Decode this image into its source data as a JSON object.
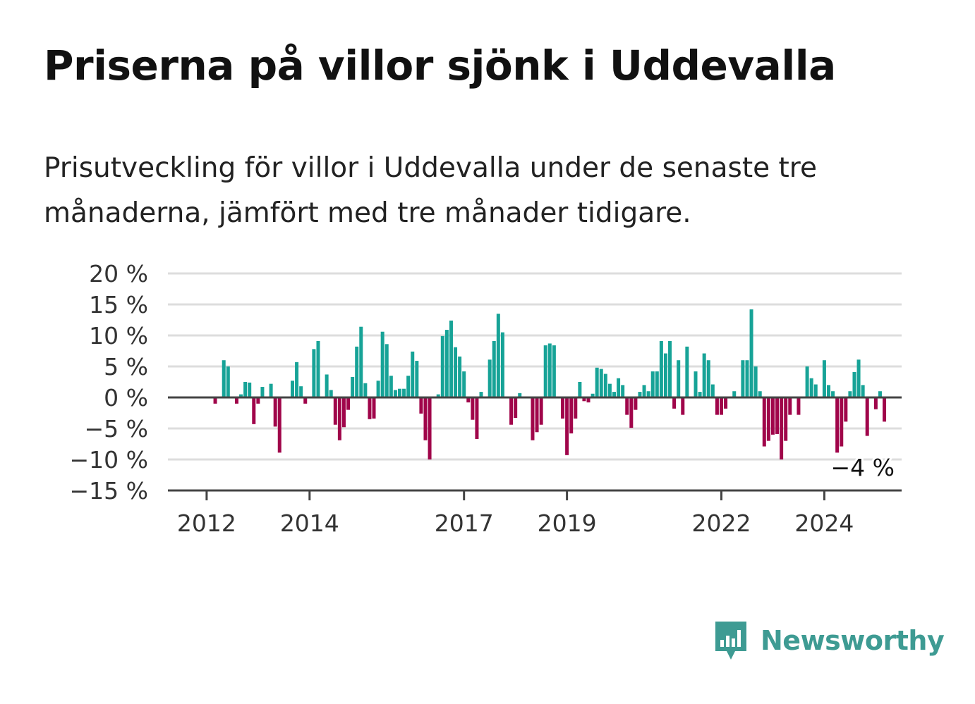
{
  "title": "Priserna på villor sjönk i Uddevalla",
  "subtitle": "Prisutveckling för villor i Uddevalla under de senaste tre månaderna, jämfört med tre månader tidigare.",
  "brand": {
    "name": "Newsworthy",
    "logo_icon": "newsworthy-bar-chart-bubble-icon",
    "color": "#3e9b93"
  },
  "colors": {
    "positive": "#17a397",
    "negative": "#a0054a",
    "grid": "#dddddd",
    "axis": "#444444"
  },
  "chart_data": {
    "type": "bar",
    "x_start": "2011-08",
    "x_interval": "month",
    "ylim": [
      -15,
      20
    ],
    "yticks": [
      -15,
      -10,
      -5,
      0,
      5,
      10,
      15,
      20
    ],
    "ytick_labels": [
      "−15 %",
      "−10 %",
      "−5 %",
      "0 %",
      "5 %",
      "10 %",
      "15 %",
      "20 %"
    ],
    "xticks": [
      {
        "date": "2012-01",
        "label": "2012"
      },
      {
        "date": "2014-01",
        "label": "2014"
      },
      {
        "date": "2017-01",
        "label": "2017"
      },
      {
        "date": "2019-01",
        "label": "2019"
      },
      {
        "date": "2022-01",
        "label": "2022"
      },
      {
        "date": "2024-01",
        "label": "2024"
      }
    ],
    "xlabel": "",
    "ylabel": "",
    "grid": true,
    "annotation": {
      "text": "−4 %",
      "value": -4
    },
    "values": [
      0,
      0,
      0,
      0,
      0,
      0,
      0,
      -1,
      0,
      6,
      5,
      0,
      -1,
      0.5,
      2.5,
      2.4,
      -4.3,
      -1,
      1.7,
      0,
      2.2,
      -4.7,
      -8.9,
      0,
      0,
      2.7,
      5.7,
      1.8,
      -1,
      0,
      7.8,
      9.1,
      0,
      3.7,
      1.2,
      -4.4,
      -6.9,
      -4.8,
      -2,
      3.3,
      8.2,
      11.4,
      2.3,
      -3.5,
      -3.4,
      2.7,
      10.6,
      8.6,
      3.5,
      1.2,
      1.4,
      1.4,
      3.5,
      7.4,
      5.9,
      -2.6,
      -6.9,
      -10,
      0,
      0.5,
      9.9,
      10.9,
      12.4,
      8.1,
      6.6,
      4.2,
      -0.8,
      -3.6,
      -6.7,
      0.9,
      0,
      6.1,
      9.1,
      13.5,
      10.5,
      0,
      -4.4,
      -3.3,
      0.7,
      0,
      0,
      -6.9,
      -5.6,
      -4.4,
      8.4,
      8.7,
      8.4,
      0,
      -3.4,
      -9.3,
      -5.8,
      -3.4,
      2.5,
      -0.6,
      -0.8,
      0.6,
      4.8,
      4.6,
      3.8,
      2.2,
      0.9,
      3.1,
      2,
      -2.8,
      -4.9,
      -2,
      0.9,
      2,
      1,
      4.2,
      4.2,
      9.1,
      7.1,
      9.1,
      -1.8,
      6,
      -2.8,
      8.2,
      0,
      4.2,
      0.9,
      7.1,
      6,
      2.1,
      -2.8,
      -2.8,
      -1.8,
      0,
      1,
      0,
      6,
      6,
      14.2,
      5,
      1,
      -7.9,
      -7,
      -6,
      -5.9,
      -10,
      -7,
      -2.8,
      0,
      -2.8,
      0,
      5,
      3.1,
      2.1,
      0,
      6,
      2,
      1,
      -8.9,
      -7.9,
      -3.9,
      1,
      4.1,
      6.1,
      2,
      -6.2,
      0,
      -1.9,
      1,
      -3.9,
      0,
      0,
      0,
      0,
      0,
      0
    ]
  }
}
